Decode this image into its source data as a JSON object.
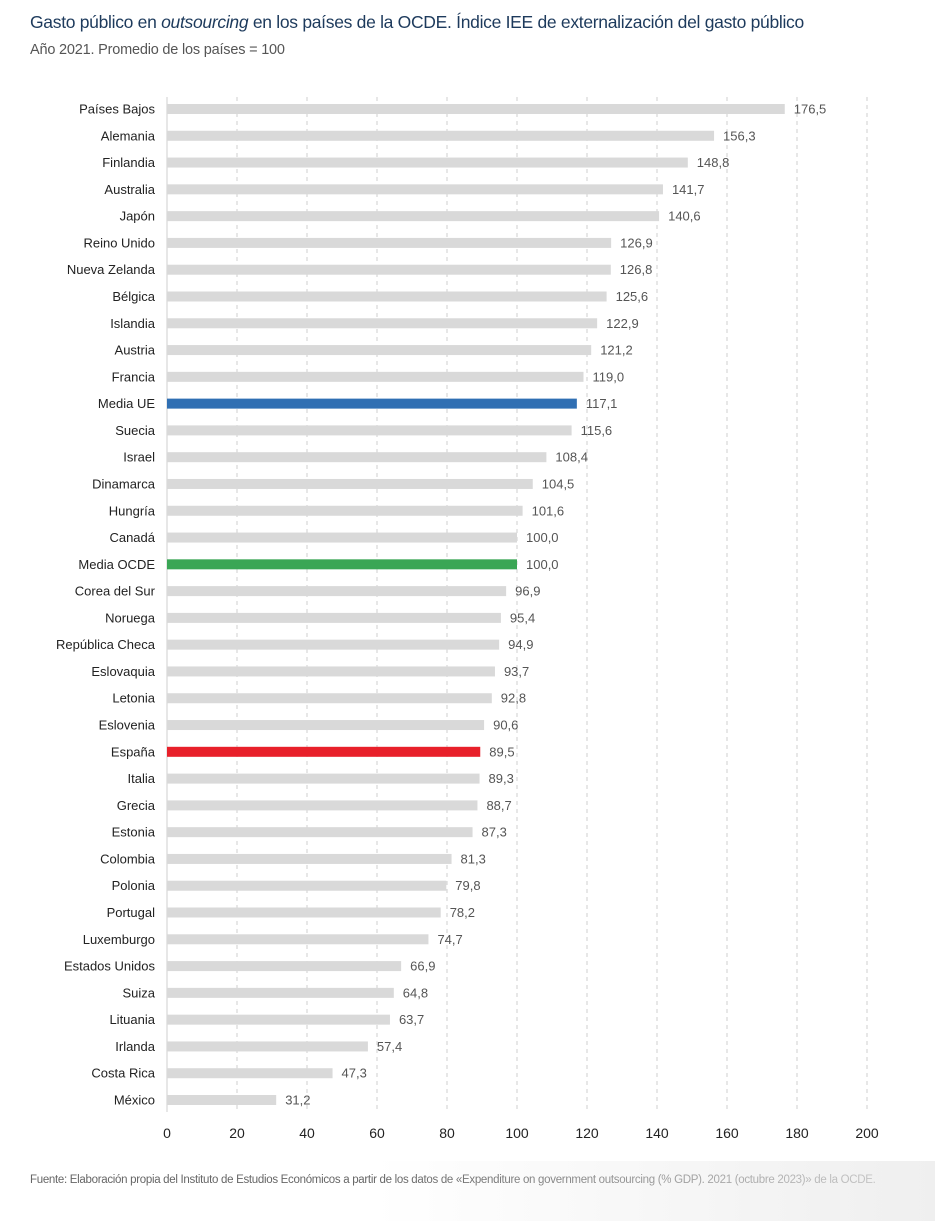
{
  "chart_data": {
    "type": "bar",
    "orientation": "horizontal",
    "title_parts": [
      "Gasto público en ",
      "outsourcing",
      " en los países de la OCDE. Índice IEE de externalización del gasto público"
    ],
    "subtitle": "Año 2021. Promedio de los países = 100",
    "categories": [
      "Países Bajos",
      "Alemania",
      "Finlandia",
      "Australia",
      "Japón",
      "Reino Unido",
      "Nueva Zelanda",
      "Bélgica",
      "Islandia",
      "Austria",
      "Francia",
      "Media UE",
      "Suecia",
      "Israel",
      "Dinamarca",
      "Hungría",
      "Canadá",
      "Media OCDE",
      "Corea del Sur",
      "Noruega",
      "República Checa",
      "Eslovaquia",
      "Letonia",
      "Eslovenia",
      "España",
      "Italia",
      "Grecia",
      "Estonia",
      "Colombia",
      "Polonia",
      "Portugal",
      "Luxemburgo",
      "Estados Unidos",
      "Suiza",
      "Lituania",
      "Irlanda",
      "Costa Rica",
      "México"
    ],
    "values": [
      176.5,
      156.3,
      148.8,
      141.7,
      140.6,
      126.9,
      126.8,
      125.6,
      122.9,
      121.2,
      119.0,
      117.1,
      115.6,
      108.4,
      104.5,
      101.6,
      100.0,
      100.0,
      96.9,
      95.4,
      94.9,
      93.7,
      92.8,
      90.6,
      89.5,
      89.3,
      88.7,
      87.3,
      81.3,
      79.8,
      78.2,
      74.7,
      66.9,
      64.8,
      63.7,
      57.4,
      47.3,
      31.2
    ],
    "value_labels": [
      "176,5",
      "156,3",
      "148,8",
      "141,7",
      "140,6",
      "126,9",
      "126,8",
      "125,6",
      "122,9",
      "121,2",
      "119,0",
      "117,1",
      "115,6",
      "108,4",
      "104,5",
      "101,6",
      "100,0",
      "100,0",
      "96,9",
      "95,4",
      "94,9",
      "93,7",
      "92,8",
      "90,6",
      "89,5",
      "89,3",
      "88,7",
      "87,3",
      "81,3",
      "79,8",
      "78,2",
      "74,7",
      "66,9",
      "64,8",
      "63,7",
      "57,4",
      "47,3",
      "31,2"
    ],
    "xlim": [
      0,
      200
    ],
    "xticks": [
      "0",
      "20",
      "40",
      "60",
      "80",
      "100",
      "120",
      "140",
      "160",
      "180",
      "200"
    ],
    "grid": "vertical dashed",
    "colors": {
      "default": "#d9d9d9",
      "Media UE": "#2f6fb3",
      "Media OCDE": "#3aa655",
      "España": "#e8202a"
    },
    "source": "Fuente: Elaboración propia del Instituto de Estudios Económicos a partir de los datos de «Expenditure on government outsourcing (% GDP). 2021 (octubre 2023)» de la OCDE."
  }
}
